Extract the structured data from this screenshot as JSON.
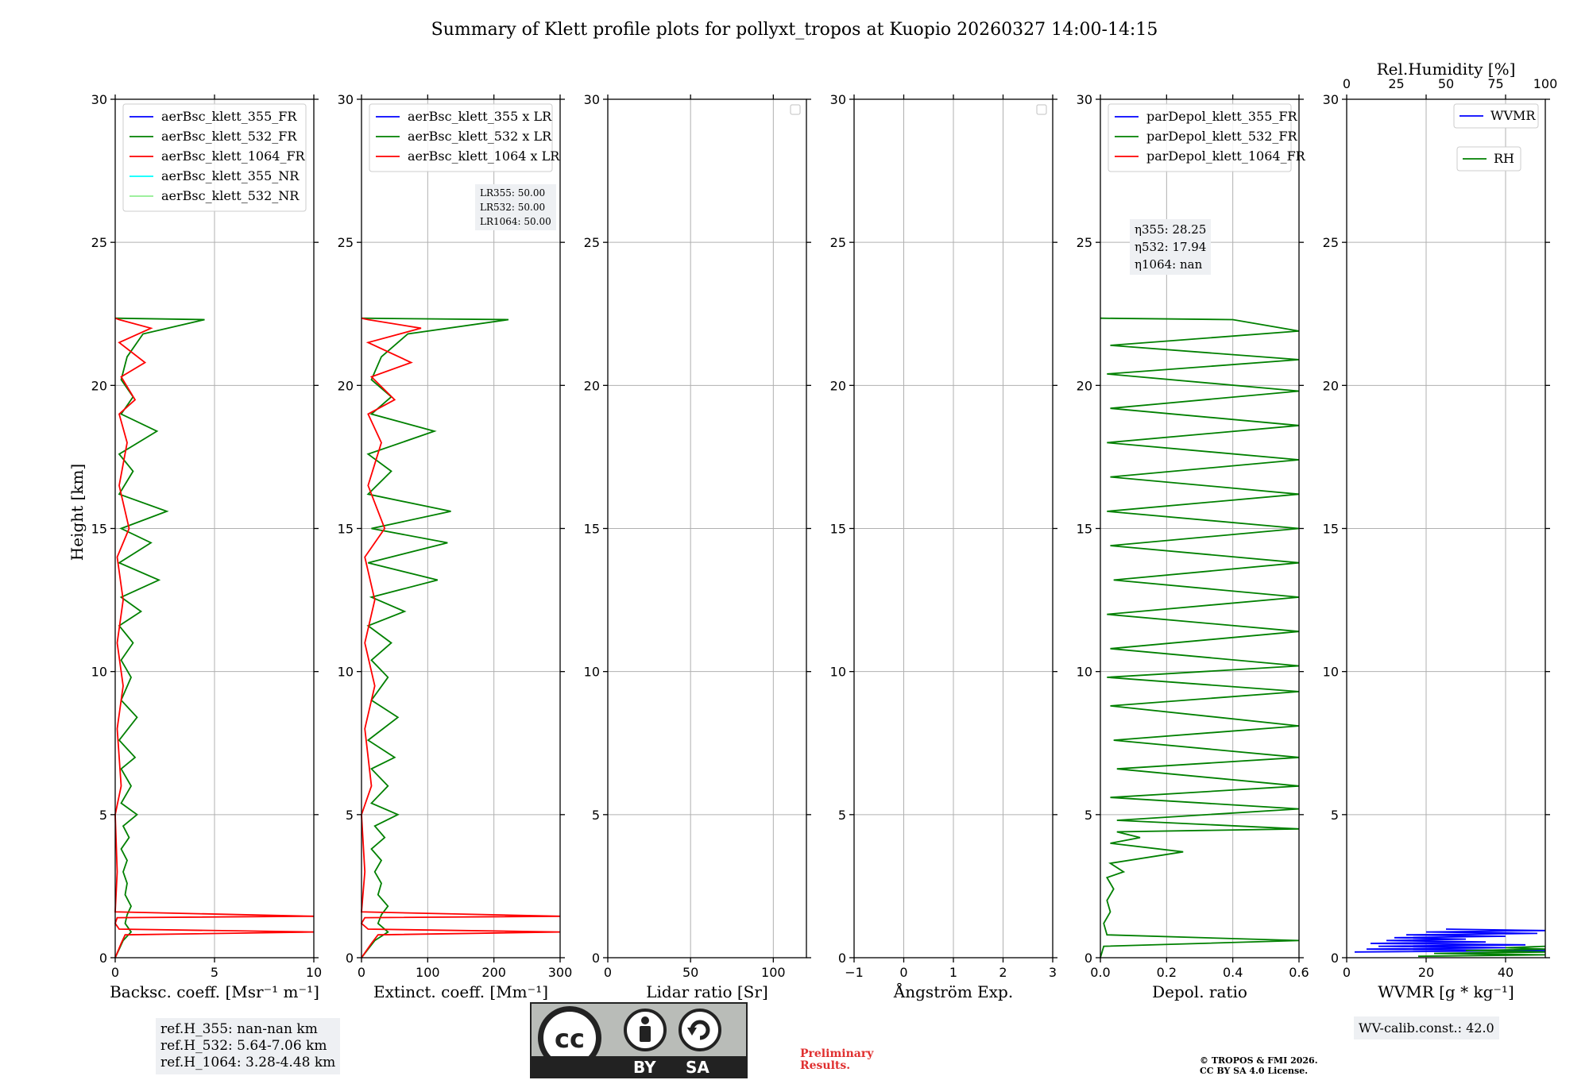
{
  "title": "Summary of Klett profile plots for pollyxt_tropos at Kuopio 20260327 14:00-14:15",
  "y_label": "Height [km]",
  "y_ticks": [
    "0",
    "5",
    "10",
    "15",
    "20",
    "25",
    "30"
  ],
  "colors": {
    "b355": "#0000ff",
    "g532": "#008000",
    "r1064": "#ff0000",
    "c355": "#00ffff",
    "lg532": "#90ee90"
  },
  "chart_data": [
    {
      "type": "line",
      "id": "backscatter",
      "xlabel": "Backsc. coeff. [Msr⁻¹ m⁻¹]",
      "xlim": [
        0,
        10
      ],
      "ylim": [
        0,
        30
      ],
      "x_ticks": [
        0,
        5,
        10
      ],
      "x_tick_labels": [
        "0",
        "5",
        "10"
      ],
      "legend": [
        "aerBsc_klett_355_FR",
        "aerBsc_klett_532_FR",
        "aerBsc_klett_1064_FR",
        "aerBsc_klett_355_NR",
        "aerBsc_klett_532_NR"
      ],
      "series": [
        {
          "name": "aerBsc_klett_532_FR",
          "color": "g532",
          "points": [
            [
              0.0,
              0.0
            ],
            [
              0.2,
              0.3
            ],
            [
              0.4,
              0.6
            ],
            [
              0.8,
              0.9
            ],
            [
              0.5,
              1.2
            ],
            [
              0.6,
              1.5
            ],
            [
              0.8,
              1.8
            ],
            [
              0.5,
              2.2
            ],
            [
              0.6,
              2.6
            ],
            [
              0.4,
              3.0
            ],
            [
              0.6,
              3.4
            ],
            [
              0.3,
              3.8
            ],
            [
              0.7,
              4.2
            ],
            [
              0.4,
              4.6
            ],
            [
              1.1,
              5.0
            ],
            [
              0.3,
              5.4
            ],
            [
              0.8,
              6.0
            ],
            [
              0.3,
              6.6
            ],
            [
              1.0,
              7.0
            ],
            [
              0.2,
              7.6
            ],
            [
              1.1,
              8.4
            ],
            [
              0.3,
              9.0
            ],
            [
              0.8,
              9.8
            ],
            [
              0.3,
              10.4
            ],
            [
              0.9,
              11.0
            ],
            [
              0.2,
              11.6
            ],
            [
              1.3,
              12.1
            ],
            [
              0.3,
              12.6
            ],
            [
              2.2,
              13.2
            ],
            [
              0.2,
              13.8
            ],
            [
              1.8,
              14.5
            ],
            [
              0.3,
              15.0
            ],
            [
              2.6,
              15.6
            ],
            [
              0.2,
              16.2
            ],
            [
              0.9,
              17.0
            ],
            [
              0.2,
              17.6
            ],
            [
              2.1,
              18.4
            ],
            [
              0.3,
              19.0
            ],
            [
              0.9,
              19.6
            ],
            [
              0.3,
              20.2
            ],
            [
              0.6,
              21.0
            ],
            [
              1.4,
              21.8
            ],
            [
              4.5,
              22.3
            ],
            [
              0.0,
              22.35
            ]
          ]
        },
        {
          "name": "aerBsc_klett_1064_FR",
          "color": "r1064",
          "points": [
            [
              0.0,
              0.0
            ],
            [
              0.3,
              0.5
            ],
            [
              0.5,
              0.8
            ],
            [
              10.0,
              0.9
            ],
            [
              0.2,
              1.0
            ],
            [
              0.0,
              1.2
            ],
            [
              0.1,
              1.4
            ],
            [
              10.0,
              1.45
            ],
            [
              0.0,
              1.6
            ],
            [
              0.1,
              3.0
            ],
            [
              0.0,
              5.0
            ],
            [
              0.3,
              6.0
            ],
            [
              0.1,
              8.0
            ],
            [
              0.4,
              9.5
            ],
            [
              0.1,
              11.0
            ],
            [
              0.4,
              12.5
            ],
            [
              0.1,
              14.0
            ],
            [
              0.7,
              15.0
            ],
            [
              0.2,
              16.5
            ],
            [
              0.6,
              18.0
            ],
            [
              0.2,
              19.0
            ],
            [
              1.0,
              19.5
            ],
            [
              0.3,
              20.3
            ],
            [
              1.5,
              20.8
            ],
            [
              0.2,
              21.5
            ],
            [
              1.8,
              22.0
            ],
            [
              0.2,
              22.3
            ],
            [
              0.0,
              22.35
            ]
          ]
        }
      ]
    },
    {
      "type": "line",
      "id": "extinction",
      "xlabel": "Extinct. coeff. [Mm⁻¹]",
      "xlim": [
        0,
        300
      ],
      "ylim": [
        0,
        30
      ],
      "x_ticks": [
        0,
        100,
        200,
        300
      ],
      "x_tick_labels": [
        "0",
        "100",
        "200",
        "300"
      ],
      "legend": [
        "aerBsc_klett_355 x LR",
        "aerBsc_klett_532 x LR",
        "aerBsc_klett_1064 x LR"
      ],
      "lr_box": [
        "LR355: 50.00",
        "LR532: 50.00",
        "LR1064: 50.00"
      ],
      "series": [
        {
          "name": "aerBsc_klett_532 x LR",
          "color": "g532",
          "points": [
            [
              0,
              0.0
            ],
            [
              10,
              0.3
            ],
            [
              20,
              0.6
            ],
            [
              40,
              0.9
            ],
            [
              25,
              1.2
            ],
            [
              30,
              1.5
            ],
            [
              40,
              1.8
            ],
            [
              25,
              2.2
            ],
            [
              30,
              2.6
            ],
            [
              20,
              3.0
            ],
            [
              30,
              3.4
            ],
            [
              15,
              3.8
            ],
            [
              35,
              4.2
            ],
            [
              20,
              4.6
            ],
            [
              55,
              5.0
            ],
            [
              15,
              5.4
            ],
            [
              40,
              6.0
            ],
            [
              15,
              6.6
            ],
            [
              50,
              7.0
            ],
            [
              10,
              7.6
            ],
            [
              55,
              8.4
            ],
            [
              15,
              9.0
            ],
            [
              40,
              9.8
            ],
            [
              15,
              10.4
            ],
            [
              45,
              11.0
            ],
            [
              10,
              11.6
            ],
            [
              65,
              12.1
            ],
            [
              15,
              12.6
            ],
            [
              115,
              13.2
            ],
            [
              10,
              13.8
            ],
            [
              130,
              14.5
            ],
            [
              15,
              15.0
            ],
            [
              135,
              15.6
            ],
            [
              10,
              16.2
            ],
            [
              45,
              17.0
            ],
            [
              10,
              17.6
            ],
            [
              110,
              18.4
            ],
            [
              15,
              19.0
            ],
            [
              45,
              19.6
            ],
            [
              15,
              20.2
            ],
            [
              30,
              21.0
            ],
            [
              70,
              21.8
            ],
            [
              222,
              22.3
            ],
            [
              0,
              22.35
            ]
          ]
        },
        {
          "name": "aerBsc_klett_1064 x LR",
          "color": "r1064",
          "points": [
            [
              0,
              0.0
            ],
            [
              15,
              0.5
            ],
            [
              25,
              0.8
            ],
            [
              300,
              0.9
            ],
            [
              10,
              1.0
            ],
            [
              0,
              1.2
            ],
            [
              5,
              1.4
            ],
            [
              300,
              1.45
            ],
            [
              0,
              1.6
            ],
            [
              5,
              3.0
            ],
            [
              0,
              5.0
            ],
            [
              15,
              6.0
            ],
            [
              5,
              8.0
            ],
            [
              20,
              9.5
            ],
            [
              5,
              11.0
            ],
            [
              20,
              12.5
            ],
            [
              5,
              14.0
            ],
            [
              35,
              15.0
            ],
            [
              10,
              16.5
            ],
            [
              30,
              18.0
            ],
            [
              10,
              19.0
            ],
            [
              50,
              19.5
            ],
            [
              15,
              20.3
            ],
            [
              75,
              20.8
            ],
            [
              10,
              21.5
            ],
            [
              90,
              22.0
            ],
            [
              10,
              22.3
            ],
            [
              0,
              22.35
            ]
          ]
        }
      ]
    },
    {
      "type": "line",
      "id": "lidar_ratio",
      "xlabel": "Lidar ratio [Sr]",
      "xlim": [
        0,
        120
      ],
      "ylim": [
        0,
        30
      ],
      "x_ticks": [
        0,
        50,
        100
      ],
      "x_tick_labels": [
        "0",
        "50",
        "100"
      ],
      "legend": [],
      "series": []
    },
    {
      "type": "line",
      "id": "angstrom",
      "xlabel": "Ångström Exp.",
      "xlim": [
        -1,
        3
      ],
      "ylim": [
        0,
        30
      ],
      "x_ticks": [
        -1,
        0,
        1,
        2,
        3
      ],
      "x_tick_labels": [
        "−1",
        "0",
        "1",
        "2",
        "3"
      ],
      "legend": [],
      "series": []
    },
    {
      "type": "line",
      "id": "depol",
      "xlabel": "Depol. ratio",
      "xlim": [
        0,
        0.6
      ],
      "ylim": [
        0,
        30
      ],
      "x_ticks": [
        0,
        0.2,
        0.4,
        0.6
      ],
      "x_tick_labels": [
        "0.0",
        "0.2",
        "0.4",
        "0.6"
      ],
      "legend": [
        "parDepol_klett_355_FR",
        "parDepol_klett_532_FR",
        "parDepol_klett_1064_FR"
      ],
      "eta_box": [
        "η355: 28.25",
        "η532: 17.94",
        "η1064: nan"
      ],
      "series": [
        {
          "name": "parDepol_klett_532_FR",
          "color": "g532",
          "points": [
            [
              0.0,
              0.0
            ],
            [
              0.01,
              0.4
            ],
            [
              0.6,
              0.6
            ],
            [
              0.02,
              0.8
            ],
            [
              0.01,
              1.2
            ],
            [
              0.03,
              1.6
            ],
            [
              0.02,
              2.0
            ],
            [
              0.04,
              2.4
            ],
            [
              0.02,
              2.8
            ],
            [
              0.07,
              3.0
            ],
            [
              0.03,
              3.3
            ],
            [
              0.25,
              3.7
            ],
            [
              0.03,
              4.0
            ],
            [
              0.12,
              4.2
            ],
            [
              0.05,
              4.4
            ],
            [
              0.6,
              4.5
            ],
            [
              0.05,
              4.8
            ],
            [
              0.6,
              5.2
            ],
            [
              0.03,
              5.6
            ],
            [
              0.6,
              6.0
            ],
            [
              0.05,
              6.6
            ],
            [
              0.6,
              7.0
            ],
            [
              0.04,
              7.6
            ],
            [
              0.6,
              8.1
            ],
            [
              0.03,
              8.8
            ],
            [
              0.6,
              9.3
            ],
            [
              0.02,
              9.8
            ],
            [
              0.6,
              10.2
            ],
            [
              0.03,
              10.8
            ],
            [
              0.6,
              11.4
            ],
            [
              0.02,
              12.0
            ],
            [
              0.6,
              12.6
            ],
            [
              0.04,
              13.2
            ],
            [
              0.6,
              13.8
            ],
            [
              0.03,
              14.4
            ],
            [
              0.6,
              15.0
            ],
            [
              0.02,
              15.6
            ],
            [
              0.6,
              16.2
            ],
            [
              0.03,
              16.8
            ],
            [
              0.6,
              17.4
            ],
            [
              0.02,
              18.0
            ],
            [
              0.6,
              18.6
            ],
            [
              0.03,
              19.2
            ],
            [
              0.6,
              19.8
            ],
            [
              0.02,
              20.4
            ],
            [
              0.6,
              20.9
            ],
            [
              0.03,
              21.4
            ],
            [
              0.6,
              21.9
            ],
            [
              0.4,
              22.3
            ],
            [
              0.0,
              22.35
            ]
          ]
        }
      ]
    },
    {
      "type": "line",
      "id": "wvmr",
      "xlabel": "WVMR [g * kg⁻¹]",
      "xlim": [
        0,
        50
      ],
      "ylim": [
        0,
        30
      ],
      "x_ticks": [
        0,
        20,
        40
      ],
      "x_tick_labels": [
        "0",
        "20",
        "40"
      ],
      "top_label": "Rel.Humidity [%]",
      "top_ticks": [
        0,
        25,
        50,
        75,
        100
      ],
      "top_tick_labels": [
        "0",
        "25",
        "50",
        "75",
        "100"
      ],
      "legend": [
        "WVMR",
        "RH"
      ],
      "calib": "WV-calib.const.: 42.0",
      "series": [
        {
          "name": "WVMR",
          "color": "b355",
          "points": [
            [
              2,
              0.2
            ],
            [
              50,
              0.25
            ],
            [
              5,
              0.3
            ],
            [
              40,
              0.35
            ],
            [
              8,
              0.4
            ],
            [
              45,
              0.45
            ],
            [
              6,
              0.5
            ],
            [
              35,
              0.55
            ],
            [
              10,
              0.6
            ],
            [
              30,
              0.65
            ],
            [
              12,
              0.7
            ],
            [
              40,
              0.75
            ],
            [
              15,
              0.8
            ],
            [
              48,
              0.85
            ],
            [
              20,
              0.9
            ],
            [
              50,
              0.95
            ],
            [
              25,
              1.0
            ]
          ]
        },
        {
          "name": "RH",
          "color": "g532",
          "points": [
            [
              18,
              0.05
            ],
            [
              50,
              0.1
            ],
            [
              22,
              0.15
            ],
            [
              50,
              0.2
            ],
            [
              30,
              0.25
            ],
            [
              50,
              0.3
            ],
            [
              40,
              0.35
            ],
            [
              50,
              0.4
            ]
          ]
        }
      ]
    }
  ],
  "ref_heights": [
    "ref.H_355: nan-nan km",
    "ref.H_532: 5.64-7.06 km",
    "ref.H_1064: 3.28-4.48 km"
  ],
  "license_badge": {
    "by": "BY",
    "sa": "SA"
  },
  "preliminary": [
    "Preliminary",
    "Results."
  ],
  "copyright": [
    "© TROPOS & FMI 2026.",
    "CC BY SA 4.0 License."
  ]
}
